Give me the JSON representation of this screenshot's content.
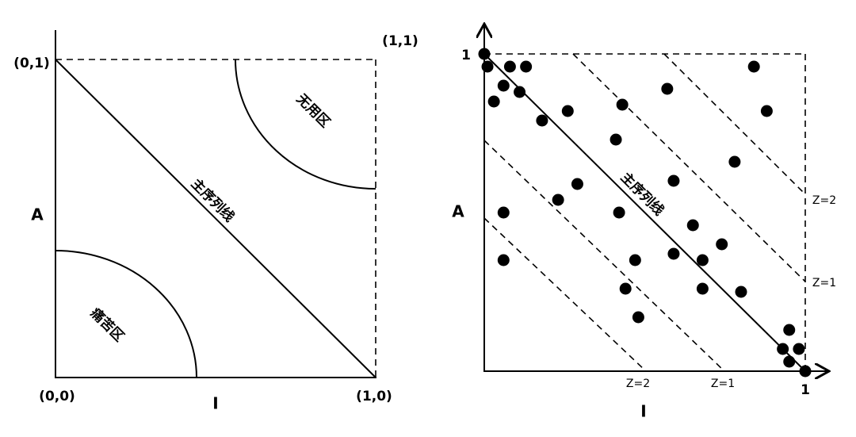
{
  "left": {
    "labels": {
      "origin": "(0,0)",
      "top_left": "(0,1)",
      "top_right": "(1,1)",
      "bottom_right": "(1,0)",
      "y_axis": "A",
      "x_axis": "I",
      "zone_useless": "无用区",
      "main_sequence": "主序列线",
      "zone_pain": "痛苦区"
    }
  },
  "right": {
    "labels": {
      "y_one": "1",
      "x_one": "1",
      "y_axis": "A",
      "x_axis": "I",
      "main_sequence": "主序列线",
      "upper_z2": "Z=2",
      "upper_z1": "Z=1",
      "lower_z2": "Z=2",
      "lower_z1": "Z=1"
    },
    "points": {
      "x": [
        0,
        0.01,
        0.08,
        0.13,
        0.06,
        0.11,
        0.03,
        0.18,
        0.26,
        0.43,
        0.57,
        0.84,
        0.88,
        0.41,
        0.78,
        0.59,
        0.29,
        0.23,
        0.06,
        0.42,
        0.65,
        0.74,
        0.59,
        0.47,
        0.68,
        0.06,
        0.44,
        0.68,
        0.8,
        0.48,
        0.95,
        0.93,
        0.98,
        0.95,
        1.0
      ],
      "y": [
        1,
        0.96,
        0.96,
        0.96,
        0.9,
        0.88,
        0.85,
        0.79,
        0.82,
        0.84,
        0.89,
        0.96,
        0.82,
        0.73,
        0.66,
        0.6,
        0.59,
        0.54,
        0.5,
        0.5,
        0.46,
        0.4,
        0.37,
        0.35,
        0.35,
        0.35,
        0.26,
        0.26,
        0.25,
        0.17,
        0.13,
        0.07,
        0.07,
        0.03,
        0
      ]
    }
  }
}
